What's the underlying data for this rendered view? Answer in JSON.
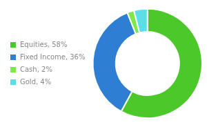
{
  "chart_data": {
    "type": "doughnut",
    "categories": [
      "Equities, 58%",
      "Fixed Income, 36%",
      "Cash, 2%",
      "Gold, 4%"
    ],
    "values": [
      58,
      36,
      2,
      4
    ],
    "colors": [
      "#4dc82a",
      "#2e7fd4",
      "#7de84a",
      "#5cdee8"
    ],
    "legend": "left"
  }
}
